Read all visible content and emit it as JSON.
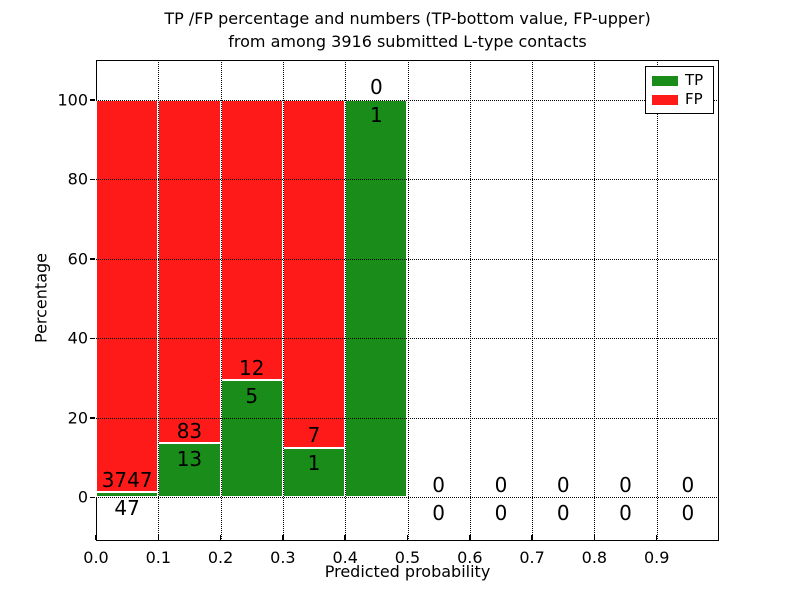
{
  "title": {
    "line1": "TP /FP percentage and numbers (TP-bottom value, FP-upper)",
    "line2": "from among 3916 submitted L-type contacts"
  },
  "axes": {
    "ylabel": "Percentage",
    "xlabel": "Predicted probability"
  },
  "legend": {
    "items": [
      {
        "label": "TP",
        "color": "#1a8c1a"
      },
      {
        "label": "FP",
        "color": "#ff1a1a"
      }
    ]
  },
  "colors": {
    "tp": "#1a8c1a",
    "fp": "#ff1a1a",
    "bar_edge": "#ffffff",
    "grid": "#000000"
  },
  "chart_data": {
    "type": "bar",
    "stacked": true,
    "title": "TP /FP percentage and numbers (TP-bottom value, FP-upper) from among 3916 submitted L-type contacts",
    "xlabel": "Predicted probability",
    "ylabel": "Percentage",
    "total_contacts": 3916,
    "xlim": [
      0.0,
      1.0
    ],
    "ylim": [
      -11,
      110
    ],
    "grid": true,
    "legend_position": "upper right",
    "x_ticks": [
      0.0,
      0.1,
      0.2,
      0.3,
      0.4,
      0.5,
      0.6,
      0.7,
      0.8,
      0.9
    ],
    "x_tick_labels": [
      "0.0",
      "0.1",
      "0.2",
      "0.3",
      "0.4",
      "0.5",
      "0.6",
      "0.7",
      "0.8",
      "0.9"
    ],
    "y_ticks": [
      0,
      20,
      40,
      60,
      80,
      100
    ],
    "y_tick_labels": [
      "0",
      "20",
      "40",
      "60",
      "80",
      "100"
    ],
    "series": [
      {
        "name": "TP",
        "values_pct": [
          1.24,
          13.54,
          29.41,
          12.5,
          100,
          0,
          0,
          0,
          0,
          0
        ]
      },
      {
        "name": "FP",
        "values_pct": [
          98.76,
          86.46,
          70.59,
          87.5,
          0,
          0,
          0,
          0,
          0,
          0
        ]
      }
    ],
    "bins": [
      {
        "range": [
          0.0,
          0.1
        ],
        "tp_count": 47,
        "fp_count": 3747,
        "tp_pct": 1.24,
        "fp_pct": 98.76
      },
      {
        "range": [
          0.1,
          0.2
        ],
        "tp_count": 13,
        "fp_count": 83,
        "tp_pct": 13.54,
        "fp_pct": 86.46
      },
      {
        "range": [
          0.2,
          0.3
        ],
        "tp_count": 5,
        "fp_count": 12,
        "tp_pct": 29.41,
        "fp_pct": 70.59
      },
      {
        "range": [
          0.3,
          0.4
        ],
        "tp_count": 1,
        "fp_count": 7,
        "tp_pct": 12.5,
        "fp_pct": 87.5
      },
      {
        "range": [
          0.4,
          0.5
        ],
        "tp_count": 1,
        "fp_count": 0,
        "tp_pct": 100,
        "fp_pct": 0
      },
      {
        "range": [
          0.5,
          0.6
        ],
        "tp_count": 0,
        "fp_count": 0,
        "tp_pct": 0,
        "fp_pct": 0
      },
      {
        "range": [
          0.6,
          0.7
        ],
        "tp_count": 0,
        "fp_count": 0,
        "tp_pct": 0,
        "fp_pct": 0
      },
      {
        "range": [
          0.7,
          0.8
        ],
        "tp_count": 0,
        "fp_count": 0,
        "tp_pct": 0,
        "fp_pct": 0
      },
      {
        "range": [
          0.8,
          0.9
        ],
        "tp_count": 0,
        "fp_count": 0,
        "tp_pct": 0,
        "fp_pct": 0
      },
      {
        "range": [
          0.9,
          1.0
        ],
        "tp_count": 0,
        "fp_count": 0,
        "tp_pct": 0,
        "fp_pct": 0
      }
    ]
  }
}
